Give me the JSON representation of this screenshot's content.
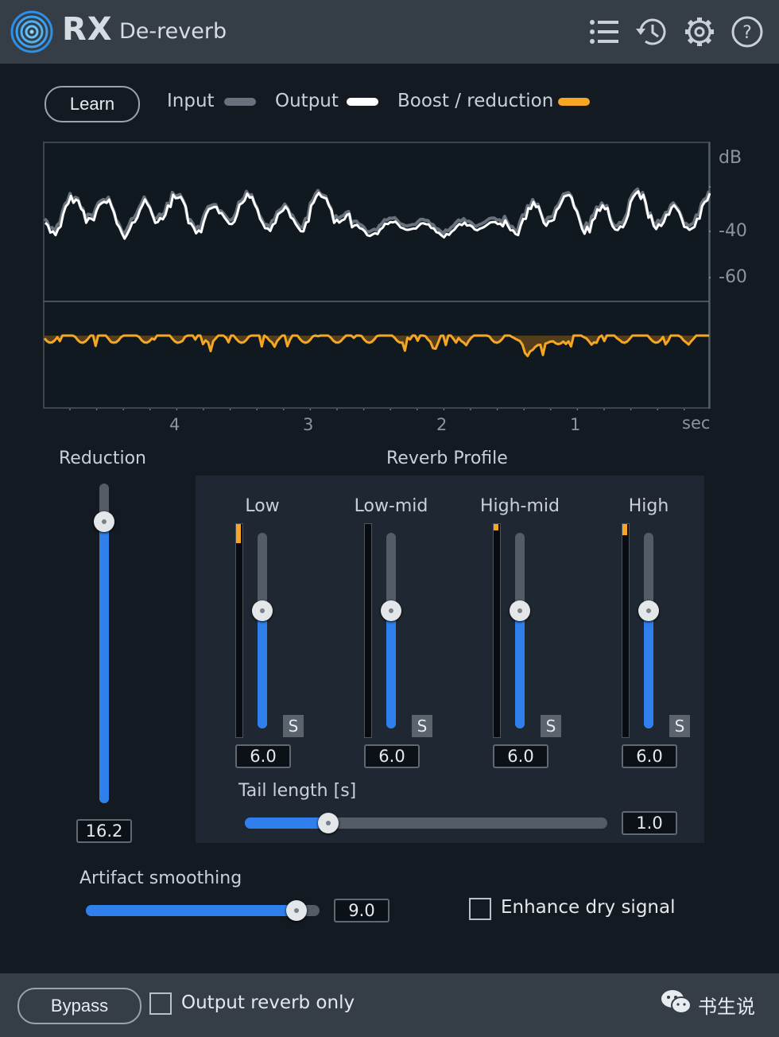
{
  "header": {
    "brand": "RX",
    "plugin_name": "De-reverb",
    "icons": [
      "list-icon",
      "history-icon",
      "gear-icon",
      "help-icon"
    ]
  },
  "learn_label": "Learn",
  "legend": {
    "input": {
      "label": "Input",
      "color": "#69727c"
    },
    "output": {
      "label": "Output",
      "color": "#ffffff"
    },
    "boost": {
      "label": "Boost / reduction",
      "color": "#f5a623"
    }
  },
  "graph": {
    "db_label": "dB",
    "db_ticks": [
      "-40",
      "-60"
    ],
    "time_ticks": [
      "4",
      "3",
      "2",
      "1"
    ],
    "time_unit": "sec"
  },
  "reduction": {
    "label": "Reduction",
    "value": "16.2",
    "level": 0.88
  },
  "profile": {
    "title": "Reverb Profile",
    "bands": [
      {
        "label": "Low",
        "value": "6.0",
        "level": 0.6,
        "meter": 0.09,
        "solo": "S"
      },
      {
        "label": "Low-mid",
        "value": "6.0",
        "level": 0.6,
        "meter": 0.0,
        "solo": "S"
      },
      {
        "label": "High-mid",
        "value": "6.0",
        "level": 0.6,
        "meter": 0.03,
        "solo": "S"
      },
      {
        "label": "High",
        "value": "6.0",
        "level": 0.6,
        "meter": 0.05,
        "solo": "S"
      }
    ],
    "tail": {
      "label": "Tail length [s]",
      "value": "1.0",
      "level": 0.23
    }
  },
  "artifact": {
    "label": "Artifact smoothing",
    "value": "9.0",
    "level": 0.9
  },
  "enhance_dry": {
    "label": "Enhance dry signal",
    "checked": false
  },
  "footer": {
    "bypass_label": "Bypass",
    "output_reverb_label": "Output reverb only",
    "watermark": "书生说"
  },
  "colors": {
    "accent_blue": "#2f80ed",
    "accent_orange": "#f5a623",
    "header_bg": "#353d46"
  }
}
